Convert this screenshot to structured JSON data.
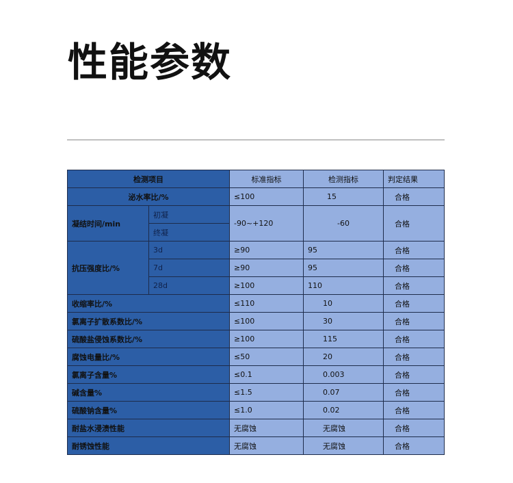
{
  "page_title": "性能参数",
  "table": {
    "headers": [
      "检测项目",
      "标准指标",
      "检测指标",
      "判定结果"
    ],
    "rows": [
      {
        "item": "泌水率比/%",
        "standard": "≤100",
        "measured": "15",
        "result": "合格"
      },
      {
        "item": "凝结时间/min",
        "subs": [
          "初凝",
          "终凝"
        ],
        "standard": "-90~+120",
        "measured": "-60",
        "result": "合格"
      },
      {
        "item": "抗压强度比/%",
        "subs": [
          "3d",
          "7d",
          "28d"
        ],
        "sub_rows": [
          {
            "standard": "≥90",
            "measured": "95",
            "result": "合格"
          },
          {
            "standard": "≥90",
            "measured": "95",
            "result": "合格"
          },
          {
            "standard": "≥100",
            "measured": "110",
            "result": "合格"
          }
        ]
      },
      {
        "item": "收缩率比/%",
        "standard": "≤110",
        "measured": "10",
        "result": "合格"
      },
      {
        "item": "氯离子扩散系数比/%",
        "standard": "≤100",
        "measured": "30",
        "result": "合格"
      },
      {
        "item": "硫酸盐侵蚀系数比/%",
        "standard": "≥100",
        "measured": "115",
        "result": "合格"
      },
      {
        "item": "腐蚀电量比/%",
        "standard": "≤50",
        "measured": "20",
        "result": "合格"
      },
      {
        "item": "氯离子含量%",
        "standard": "≤0.1",
        "measured": "0.003",
        "result": "合格"
      },
      {
        "item": "碱含量%",
        "standard": "≤1.5",
        "measured": "0.07",
        "result": "合格"
      },
      {
        "item": "硫酸钠含量%",
        "standard": "≤1.0",
        "measured": "0.02",
        "result": "合格"
      },
      {
        "item": "耐盐水浸渍性能",
        "standard": "无腐蚀",
        "measured": "无腐蚀",
        "result": "合格"
      },
      {
        "item": "耐锈蚀性能",
        "standard": "无腐蚀",
        "measured": "无腐蚀",
        "result": "合格"
      }
    ]
  },
  "colors": {
    "dark_cell": "#2c5ea6",
    "light_cell": "#95afe0"
  }
}
